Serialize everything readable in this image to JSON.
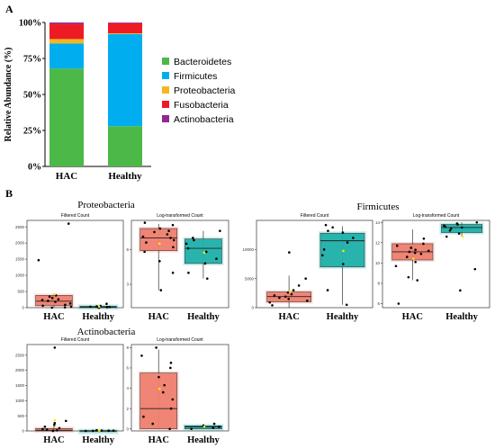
{
  "panel_a": {
    "label": "A"
  },
  "panel_b": {
    "label": "B"
  },
  "colors": {
    "Bacteroidetes": "#4cb848",
    "Firmicutes": "#00aeef",
    "Proteobacteria": "#f7b61b",
    "Fusobacteria": "#ed1c24",
    "Actinobacteria": "#92278f",
    "box_hac": "#f08070",
    "box_healthy": "#20b2aa"
  },
  "chart_data": [
    {
      "id": "stacked",
      "type": "bar",
      "stacked": true,
      "categories": [
        "HAC",
        "Healthy"
      ],
      "ylabel": "Relative Abundance (%)",
      "xlabel": "",
      "ylim": [
        0,
        100
      ],
      "yticks": [
        "0%",
        "25%",
        "50%",
        "75%",
        "100%"
      ],
      "series": [
        {
          "name": "Bacteroidetes",
          "values": [
            68,
            28
          ]
        },
        {
          "name": "Firmicutes",
          "values": [
            17.5,
            64
          ]
        },
        {
          "name": "Proteobacteria",
          "values": [
            3,
            0.5
          ]
        },
        {
          "name": "Fusobacteria",
          "values": [
            10.5,
            7
          ]
        },
        {
          "name": "Actinobacteria",
          "values": [
            1,
            0.5
          ]
        }
      ],
      "legend_position": "right"
    },
    {
      "id": "pf",
      "type": "box",
      "group_title": "Proteobacteria",
      "title": "Filtered Count",
      "categories": [
        "HAC",
        "Healthy"
      ],
      "ylim": [
        0,
        2700
      ],
      "yticks": [
        0,
        500,
        1000,
        1500,
        2000,
        2500
      ],
      "boxes": [
        {
          "min": 0,
          "q1": 60,
          "median": 200,
          "q3": 380,
          "max": 420,
          "points": [
            2600,
            1470,
            380,
            340,
            300,
            260,
            240,
            210,
            180,
            130,
            90,
            60,
            30,
            10,
            0
          ]
        },
        {
          "min": 0,
          "q1": 5,
          "median": 20,
          "q3": 45,
          "max": 60,
          "points": [
            120,
            55,
            40,
            30,
            20,
            15,
            10,
            5,
            0
          ]
        }
      ]
    },
    {
      "id": "pl",
      "type": "box",
      "title": "Log-transformed Count",
      "categories": [
        "HAC",
        "Healthy"
      ],
      "ylim": [
        1,
        8.5
      ],
      "yticks": [
        3,
        6
      ],
      "boxes": [
        {
          "min": 2.5,
          "q1": 5.9,
          "median": 7.0,
          "q3": 7.8,
          "max": 8.2,
          "points": [
            8.3,
            8.1,
            7.8,
            7.6,
            7.5,
            7.3,
            7.1,
            7.0,
            6.8,
            6.6,
            6.2,
            5.8,
            5.0,
            4.0,
            2.5
          ]
        },
        {
          "min": 3.5,
          "q1": 4.8,
          "median": 6.1,
          "q3": 6.9,
          "max": 7.6,
          "points": [
            7.6,
            7.0,
            6.8,
            6.5,
            6.1,
            5.8,
            5.2,
            4.8,
            4.0,
            3.5
          ]
        }
      ]
    },
    {
      "id": "ff",
      "type": "box",
      "group_title": "Firmicutes",
      "title": "Filtered Count",
      "categories": [
        "HAC",
        "Healthy"
      ],
      "ylim": [
        0,
        15000
      ],
      "yticks": [
        0,
        5000,
        10000
      ],
      "boxes": [
        {
          "min": 0,
          "q1": 1000,
          "median": 1900,
          "q3": 2700,
          "max": 5500,
          "points": [
            9500,
            5000,
            3800,
            3000,
            2600,
            2300,
            2100,
            1900,
            1700,
            1500,
            1200,
            900,
            400
          ]
        },
        {
          "min": 500,
          "q1": 7000,
          "median": 11500,
          "q3": 12800,
          "max": 14000,
          "points": [
            14200,
            13800,
            13200,
            12900,
            12000,
            11200,
            10000,
            9000,
            7500,
            3000,
            500
          ]
        }
      ]
    },
    {
      "id": "fl",
      "type": "box",
      "title": "Log-transformed Count",
      "categories": [
        "HAC",
        "Healthy"
      ],
      "ylim": [
        5.6,
        14.2
      ],
      "yticks": [
        6,
        8,
        10,
        12,
        14
      ],
      "boxes": [
        {
          "min": 8.3,
          "q1": 10.3,
          "median": 11.1,
          "q3": 11.9,
          "max": 13.3,
          "points": [
            12.4,
            11.9,
            11.7,
            11.5,
            11.3,
            11.2,
            11.1,
            11.0,
            10.9,
            10.6,
            10.1,
            9.7,
            8.6,
            8.3,
            6.0
          ]
        },
        {
          "min": 12.6,
          "q1": 13.0,
          "median": 13.5,
          "q3": 13.8,
          "max": 14.0,
          "points": [
            14.0,
            13.9,
            13.8,
            13.7,
            13.6,
            13.5,
            13.4,
            13.2,
            12.9,
            12.6,
            9.4,
            7.3
          ]
        }
      ]
    },
    {
      "id": "af",
      "type": "box",
      "group_title": "Actinobacteria",
      "title": "Filtered Count",
      "categories": [
        "HAC",
        "Healthy"
      ],
      "ylim": [
        0,
        2850
      ],
      "yticks": [
        0,
        500,
        1000,
        1500,
        2000,
        2500
      ],
      "boxes": [
        {
          "min": 0,
          "q1": 0,
          "median": 20,
          "q3": 80,
          "max": 160,
          "points": [
            2750,
            330,
            260,
            200,
            140,
            90,
            60,
            40,
            20,
            10,
            0
          ]
        },
        {
          "min": 0,
          "q1": 0,
          "median": 5,
          "q3": 10,
          "max": 20,
          "points": [
            25,
            15,
            10,
            8,
            5,
            3,
            0
          ]
        }
      ]
    },
    {
      "id": "al",
      "type": "box",
      "title": "Log-transformed Count",
      "categories": [
        "HAC",
        "Healthy"
      ],
      "ylim": [
        -0.2,
        8.3
      ],
      "yticks": [
        0,
        2,
        4,
        6,
        8
      ],
      "boxes": [
        {
          "min": 0,
          "q1": 0,
          "median": 2.0,
          "q3": 5.5,
          "max": 7.8,
          "points": [
            8.0,
            7.2,
            6.5,
            6.0,
            5.1,
            4.3,
            3.6,
            2.9,
            2.0,
            1.2,
            0.5,
            0
          ]
        },
        {
          "min": 0,
          "q1": 0,
          "median": 0.2,
          "q3": 0.3,
          "max": 0.5,
          "points": [
            0.5,
            0.3,
            0.2,
            0.1,
            0
          ]
        }
      ]
    }
  ]
}
